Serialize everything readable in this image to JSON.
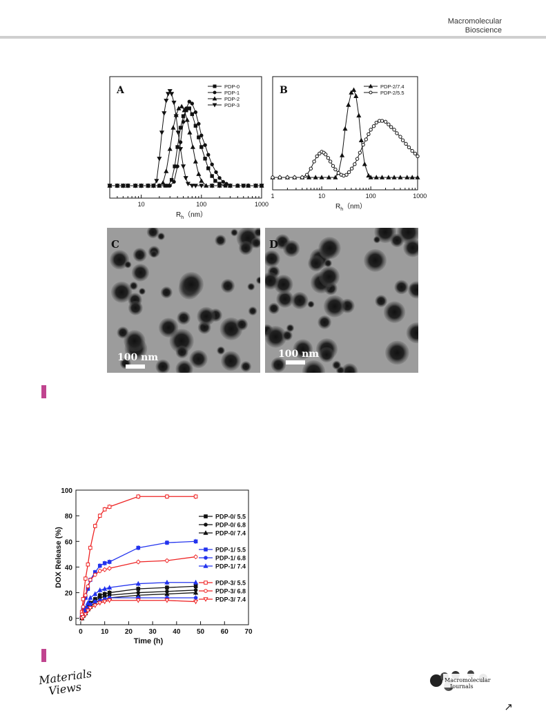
{
  "header": {
    "journal_line1": "Macromolecular",
    "journal_line2": "Bioscience"
  },
  "panels": {
    "c_label": "C",
    "c_scale": "100 nm",
    "d_label": "D",
    "d_scale": "100 nm"
  },
  "footer": {
    "left_logo_line1": "Materials",
    "left_logo_line2": "Views",
    "right_logo_line1": "Macromolecular",
    "right_logo_line2": "Journals",
    "arrow": "↗"
  },
  "chart_data": [
    {
      "panel": "A",
      "type": "line",
      "xscale": "log",
      "xlim": [
        3,
        1000
      ],
      "xticks": [
        "10",
        "100",
        "1000"
      ],
      "xlabel": "R",
      "xlabel_sub": "h",
      "xlabel_unit": "（nm）",
      "legend_position": "top-right",
      "series": [
        {
          "name": "PDP-0",
          "marker": "square",
          "x": [
            3,
            4,
            5,
            6,
            8,
            10,
            13,
            16,
            20,
            25,
            28,
            32,
            36,
            40,
            45,
            50,
            56,
            63,
            70,
            80,
            90,
            100,
            115,
            130,
            150,
            170,
            200,
            250,
            300,
            400,
            500,
            600,
            800,
            1000
          ],
          "y": [
            0,
            0,
            0,
            0,
            0,
            0,
            0,
            0,
            0,
            0,
            0,
            0.06,
            0.2,
            0.4,
            0.6,
            0.72,
            0.78,
            0.8,
            0.74,
            0.62,
            0.5,
            0.4,
            0.28,
            0.18,
            0.1,
            0.05,
            0.02,
            0,
            0,
            0,
            0,
            0,
            0,
            0
          ]
        },
        {
          "name": "PDP-1",
          "marker": "circle",
          "x": [
            3,
            4,
            5,
            6,
            8,
            10,
            13,
            16,
            20,
            25,
            30,
            35,
            40,
            45,
            50,
            56,
            63,
            70,
            80,
            90,
            100,
            115,
            130,
            150,
            175,
            200,
            230,
            260,
            300,
            400,
            500,
            600,
            800,
            1000
          ],
          "y": [
            0,
            0,
            0,
            0,
            0,
            0,
            0,
            0,
            0,
            0,
            0,
            0.04,
            0.2,
            0.45,
            0.66,
            0.8,
            0.87,
            0.85,
            0.76,
            0.64,
            0.52,
            0.42,
            0.32,
            0.22,
            0.14,
            0.08,
            0.04,
            0.02,
            0,
            0,
            0,
            0,
            0,
            0
          ]
        },
        {
          "name": "PDP-2",
          "marker": "triangle-up",
          "x": [
            3,
            4,
            5,
            6,
            8,
            10,
            13,
            16,
            20,
            23,
            26,
            30,
            34,
            38,
            42,
            47,
            52,
            58,
            64,
            72,
            80,
            90,
            100,
            120,
            150,
            200,
            300,
            400,
            600,
            800,
            1000
          ],
          "y": [
            0,
            0,
            0,
            0,
            0,
            0,
            0,
            0,
            0,
            0.03,
            0.15,
            0.38,
            0.6,
            0.73,
            0.8,
            0.82,
            0.78,
            0.68,
            0.55,
            0.4,
            0.25,
            0.12,
            0.05,
            0,
            0,
            0,
            0,
            0,
            0,
            0,
            0
          ]
        },
        {
          "name": "PDP-3",
          "marker": "triangle-down",
          "x": [
            3,
            4,
            5,
            6,
            8,
            10,
            13,
            16,
            18,
            20,
            22,
            24,
            26,
            28,
            30,
            32,
            35,
            38,
            41,
            45,
            50,
            55,
            60,
            70,
            80,
            100,
            150,
            200,
            300,
            500,
            800,
            1000
          ],
          "y": [
            0,
            0,
            0,
            0,
            0,
            0,
            0,
            0,
            0.05,
            0.28,
            0.55,
            0.75,
            0.88,
            0.95,
            0.98,
            0.95,
            0.86,
            0.72,
            0.55,
            0.38,
            0.2,
            0.08,
            0.02,
            0,
            0,
            0,
            0,
            0,
            0,
            0,
            0,
            0
          ]
        }
      ]
    },
    {
      "panel": "B",
      "type": "line",
      "xscale": "log",
      "xlim": [
        1,
        900
      ],
      "xticks": [
        "1",
        "10",
        "100",
        "1000"
      ],
      "xlabel": "R",
      "xlabel_sub": "h",
      "xlabel_unit": "（nm）",
      "legend_position": "top-right",
      "series": [
        {
          "name": "PDP-2/7.4",
          "marker": "triangle-up",
          "x": [
            1,
            1.4,
            2,
            2.8,
            4,
            5.5,
            7.5,
            10,
            14,
            19,
            22,
            26,
            30,
            35,
            40,
            45,
            50,
            57,
            64,
            75,
            90,
            100,
            130,
            170,
            230,
            300,
            400,
            550,
            700,
            900
          ],
          "y": [
            0,
            0,
            0,
            0,
            0,
            0,
            0,
            0,
            0,
            0,
            0.05,
            0.25,
            0.55,
            0.82,
            0.96,
            0.99,
            0.92,
            0.7,
            0.42,
            0.15,
            0.02,
            0,
            0,
            0,
            0,
            0,
            0,
            0,
            0,
            0
          ]
        },
        {
          "name": "PDP-2/5.5",
          "marker": "circle-open",
          "x": [
            1,
            1.4,
            2,
            2.8,
            4,
            5,
            6,
            7,
            8,
            9,
            10,
            11,
            12,
            13.5,
            15,
            17,
            19,
            22,
            25,
            28,
            32,
            36,
            41,
            47,
            53,
            60,
            70,
            80,
            90,
            100,
            115,
            130,
            150,
            170,
            200,
            230,
            260,
            300,
            340,
            400,
            450,
            520,
            600,
            700,
            800,
            900
          ],
          "y": [
            0,
            0,
            0,
            0,
            0,
            0.03,
            0.1,
            0.18,
            0.24,
            0.27,
            0.29,
            0.28,
            0.26,
            0.22,
            0.18,
            0.13,
            0.09,
            0.05,
            0.03,
            0.02,
            0.03,
            0.06,
            0.1,
            0.15,
            0.21,
            0.28,
            0.37,
            0.43,
            0.49,
            0.54,
            0.58,
            0.62,
            0.64,
            0.64,
            0.63,
            0.6,
            0.57,
            0.54,
            0.5,
            0.46,
            0.42,
            0.38,
            0.34,
            0.3,
            0.27,
            0.24
          ]
        }
      ]
    },
    {
      "panel": "release",
      "type": "line",
      "xlabel": "Time (h)",
      "ylabel": "DOX Release (%)",
      "xlim": [
        -2,
        70
      ],
      "ylim": [
        -5,
        100
      ],
      "xticks": [
        0,
        10,
        20,
        30,
        40,
        50,
        60,
        70
      ],
      "yticks": [
        0,
        20,
        40,
        60,
        80,
        100
      ],
      "x": [
        0.5,
        1,
        2,
        3,
        4,
        6,
        8,
        10,
        12,
        24,
        36,
        48
      ],
      "legend_position": "right",
      "series": [
        {
          "name": "PDP-0/ 5.5",
          "color": "#111111",
          "marker": "square",
          "open": false,
          "values": [
            1,
            3,
            6,
            9,
            12,
            15,
            18,
            19,
            20,
            23,
            24,
            25
          ]
        },
        {
          "name": "PDP-0/ 6.8",
          "color": "#111111",
          "marker": "circle",
          "open": false,
          "values": [
            1,
            2,
            5,
            8,
            11,
            14,
            16,
            17,
            18,
            20,
            21,
            22
          ]
        },
        {
          "name": "PDP-0/ 7.4",
          "color": "#111111",
          "marker": "triangle-up",
          "open": false,
          "values": [
            0,
            2,
            4,
            7,
            9,
            12,
            14,
            15,
            16,
            18,
            19,
            20
          ]
        },
        {
          "name": "PDP-1/ 5.5",
          "color": "#2233ee",
          "marker": "square",
          "open": false,
          "values": [
            3,
            8,
            16,
            23,
            30,
            36,
            41,
            43,
            44,
            55,
            59,
            60
          ]
        },
        {
          "name": "PDP-1/ 6.8",
          "color": "#2233ee",
          "marker": "circle",
          "open": false,
          "values": [
            1,
            2,
            5,
            8,
            11,
            13,
            14,
            15,
            16,
            16,
            16,
            16
          ]
        },
        {
          "name": "PDP-1/ 7.4",
          "color": "#2233ee",
          "marker": "triangle-up",
          "open": false,
          "values": [
            2,
            4,
            8,
            12,
            16,
            19,
            22,
            23,
            24,
            27,
            28,
            28
          ]
        },
        {
          "name": "PDP-3/ 5.5",
          "color": "#ee2222",
          "marker": "square",
          "open": true,
          "values": [
            5,
            15,
            31,
            42,
            55,
            72,
            80,
            85,
            87,
            95,
            95,
            95
          ]
        },
        {
          "name": "PDP-3/ 6.8",
          "color": "#ee2222",
          "marker": "circle",
          "open": true,
          "values": [
            3,
            9,
            18,
            25,
            30,
            34,
            37,
            38,
            39,
            44,
            45,
            48
          ]
        },
        {
          "name": "PDP-3/ 7.4",
          "color": "#ee2222",
          "marker": "triangle-down",
          "open": true,
          "values": [
            0,
            1,
            3,
            6,
            8,
            10,
            12,
            13,
            14,
            14,
            14,
            13
          ]
        }
      ]
    }
  ]
}
